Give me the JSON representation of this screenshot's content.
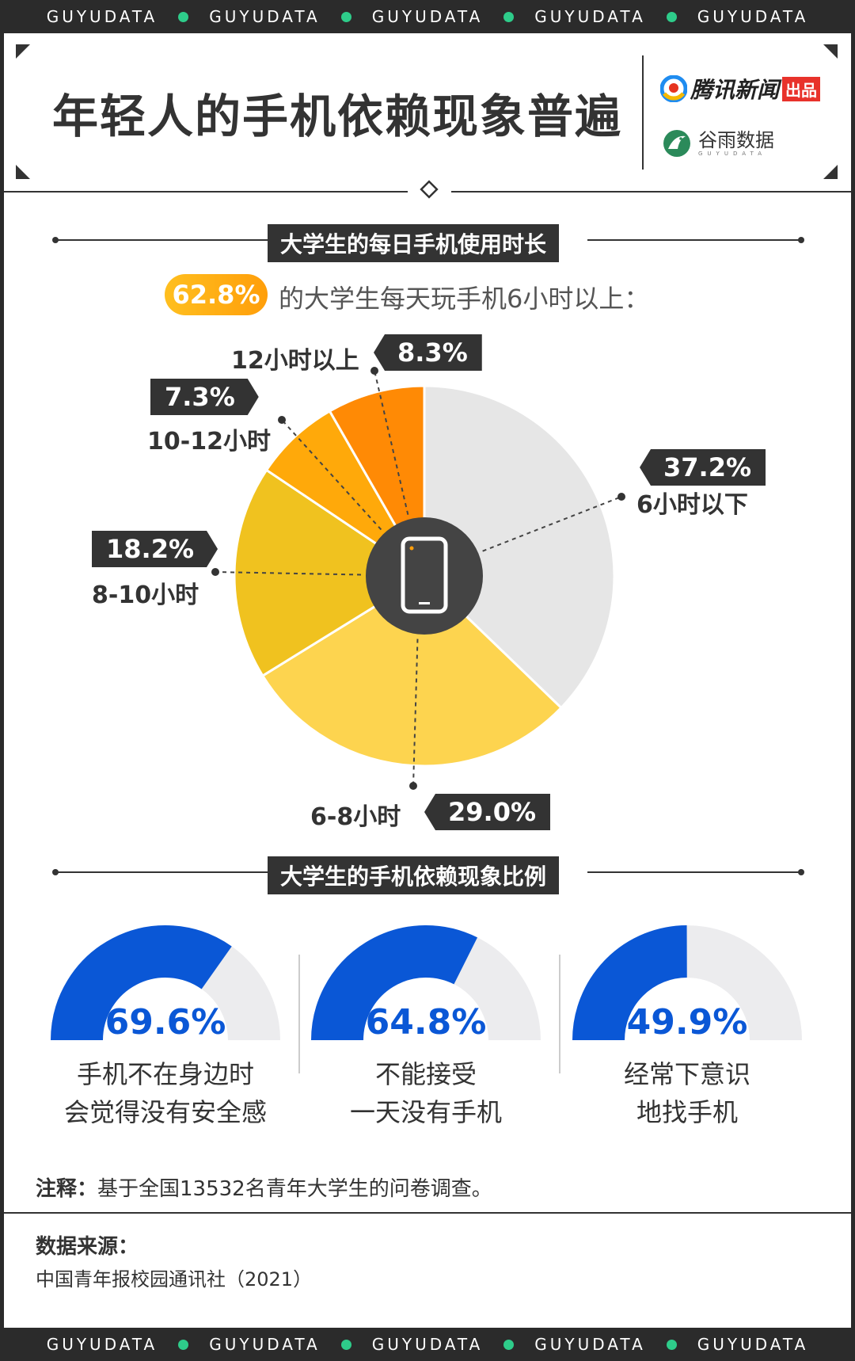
{
  "brand_band": "GUYUDATA",
  "header": {
    "title": "年轻人的手机依赖现象普遍",
    "logo_tencent": "腾讯新闻",
    "logo_tencent_badge": "出品",
    "logo_guyu": "谷雨数据",
    "logo_guyu_sub": "GUYUDATA"
  },
  "section1": {
    "title": "大学生的每日手机使用时长",
    "highlight_pct": "62.8%",
    "highlight_text": "的大学生每天玩手机6小时以上："
  },
  "chart_data": [
    {
      "type": "pie",
      "categories": [
        "6小时以下",
        "6-8小时",
        "8-10小时",
        "10-12小时",
        "12小时以上"
      ],
      "values": [
        37.2,
        29.0,
        18.2,
        7.3,
        8.3
      ],
      "labels": [
        "37.2%",
        "29.0%",
        "18.2%",
        "7.3%",
        "8.3%"
      ],
      "colors": [
        "#e6e6e6",
        "#fdd44f",
        "#f0c21f",
        "#ffa90a",
        "#ff8a05"
      ]
    },
    {
      "type": "gauge",
      "title": "大学生的手机依赖现象比例",
      "values": [
        69.6,
        64.8,
        49.9
      ],
      "labels": [
        "69.6%",
        "64.8%",
        "49.9%"
      ],
      "captions": [
        [
          "手机不在身边时",
          "会觉得没有安全感"
        ],
        [
          "不能接受",
          "一天没有手机"
        ],
        [
          "经常下意识",
          "地找手机"
        ]
      ],
      "colors": {
        "fill": "#0a57d6",
        "track": "#ececee"
      }
    }
  ],
  "note": {
    "label": "注释：",
    "text": "基于全国13532名青年大学生的问卷调查。"
  },
  "source": {
    "title": "数据来源：",
    "text": "中国青年报校园通讯社（2021）"
  }
}
